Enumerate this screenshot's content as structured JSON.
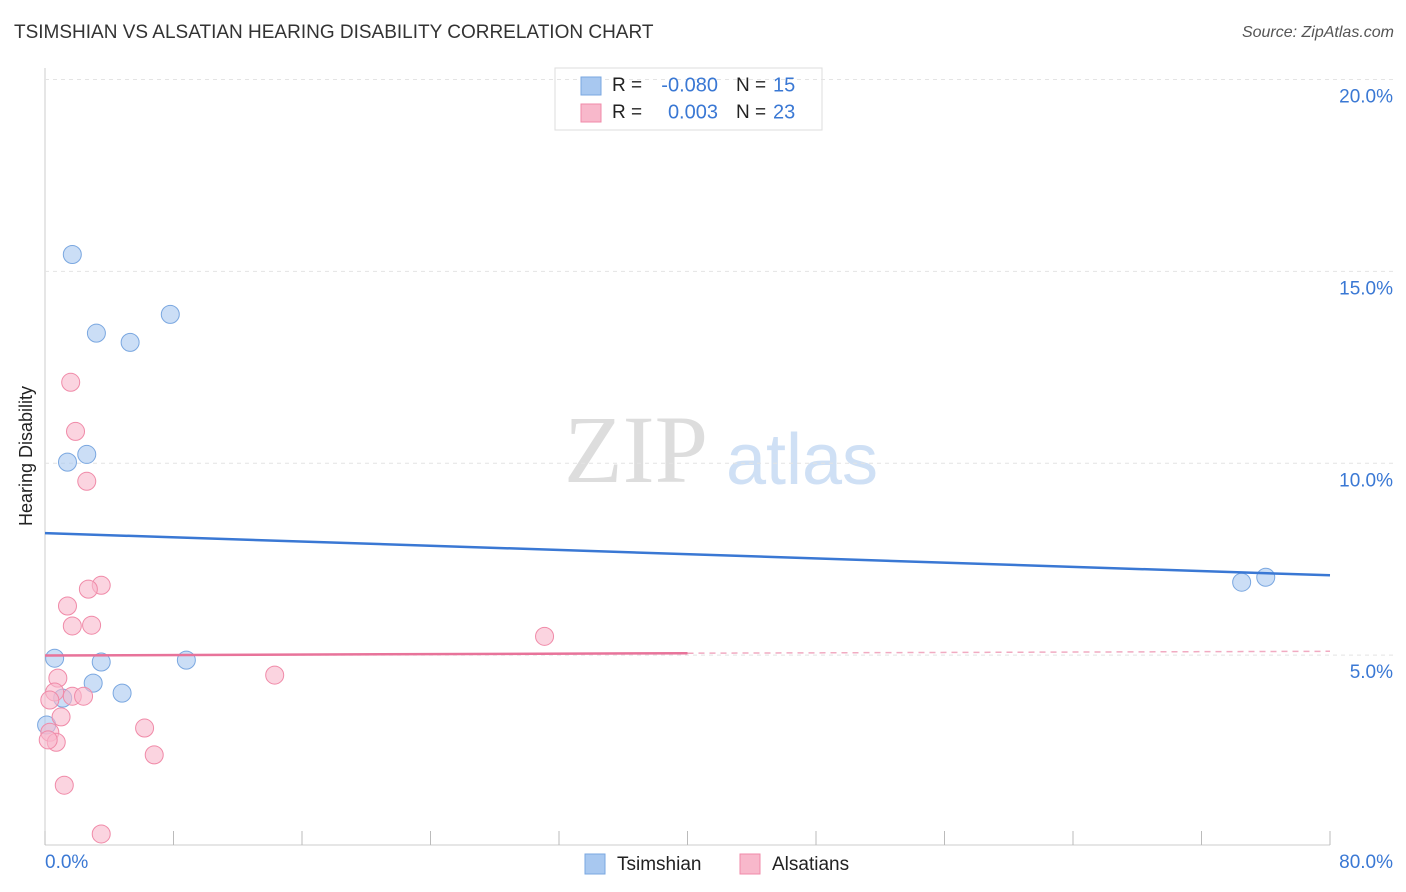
{
  "chart_data": {
    "type": "scatter",
    "title": "TSIMSHIAN VS ALSATIAN HEARING DISABILITY CORRELATION CHART",
    "source": "Source: ZipAtlas.com",
    "y_label": "Hearing Disability",
    "watermark": [
      "ZIP",
      "atlas"
    ],
    "stat_labels": {
      "r": "R =",
      "n": "N ="
    },
    "xlim": [
      0,
      80
    ],
    "ylim": [
      0,
      20.3
    ],
    "xticks": [
      {
        "value": 0,
        "label": "0.0%"
      },
      {
        "value": 80,
        "label": "80.0%"
      }
    ],
    "x_minor_ticks": [
      8,
      16,
      24,
      32,
      40,
      48,
      56,
      64,
      72
    ],
    "yticks": [
      {
        "value": 5,
        "label": "5.0%"
      },
      {
        "value": 10,
        "label": "10.0%"
      },
      {
        "value": 15,
        "label": "15.0%"
      },
      {
        "value": 20,
        "label": "20.0%"
      }
    ],
    "grid": true,
    "series": [
      {
        "name": "Tsimshian",
        "color": "#7aa7e0",
        "fill": "#a8c8f0",
        "line_color": "#3a78d4",
        "r": {
          "value": -0.08,
          "label": "-0.080"
        },
        "n": 15,
        "x": [
          1.7,
          3.2,
          5.3,
          7.8,
          1.4,
          2.6,
          0.6,
          3.5,
          8.8,
          3.0,
          4.8,
          1.1,
          0.1,
          74.5,
          76.0
        ],
        "values": [
          15.44,
          13.39,
          13.15,
          13.88,
          10.03,
          10.23,
          4.92,
          4.82,
          4.87,
          4.27,
          4.01,
          3.88,
          3.18,
          6.9,
          7.03
        ],
        "trend": {
          "x": [
            0,
            80
          ],
          "y": [
            8.18,
            7.08
          ]
        }
      },
      {
        "name": "Alsatians",
        "color": "#f08aa8",
        "fill": "#f8b8cb",
        "line_color": "#e8739a",
        "r": {
          "value": 0.003,
          "label": "0.003"
        },
        "n": 23,
        "x": [
          1.6,
          1.9,
          2.6,
          3.5,
          2.7,
          1.4,
          1.7,
          2.9,
          31.1,
          14.3,
          0.8,
          0.6,
          0.3,
          1.7,
          2.4,
          1.0,
          6.2,
          0.3,
          0.7,
          6.8,
          1.2,
          3.5,
          0.2
        ],
        "values": [
          12.11,
          10.83,
          9.53,
          6.82,
          6.72,
          6.28,
          5.76,
          5.78,
          5.49,
          4.48,
          4.4,
          4.04,
          3.83,
          3.93,
          3.93,
          3.39,
          3.1,
          2.99,
          2.73,
          2.4,
          1.61,
          0.34,
          2.79
        ],
        "trend": {
          "x": [
            0,
            40,
            80
          ],
          "y": [
            4.99,
            5.05,
            5.1
          ]
        }
      }
    ]
  }
}
